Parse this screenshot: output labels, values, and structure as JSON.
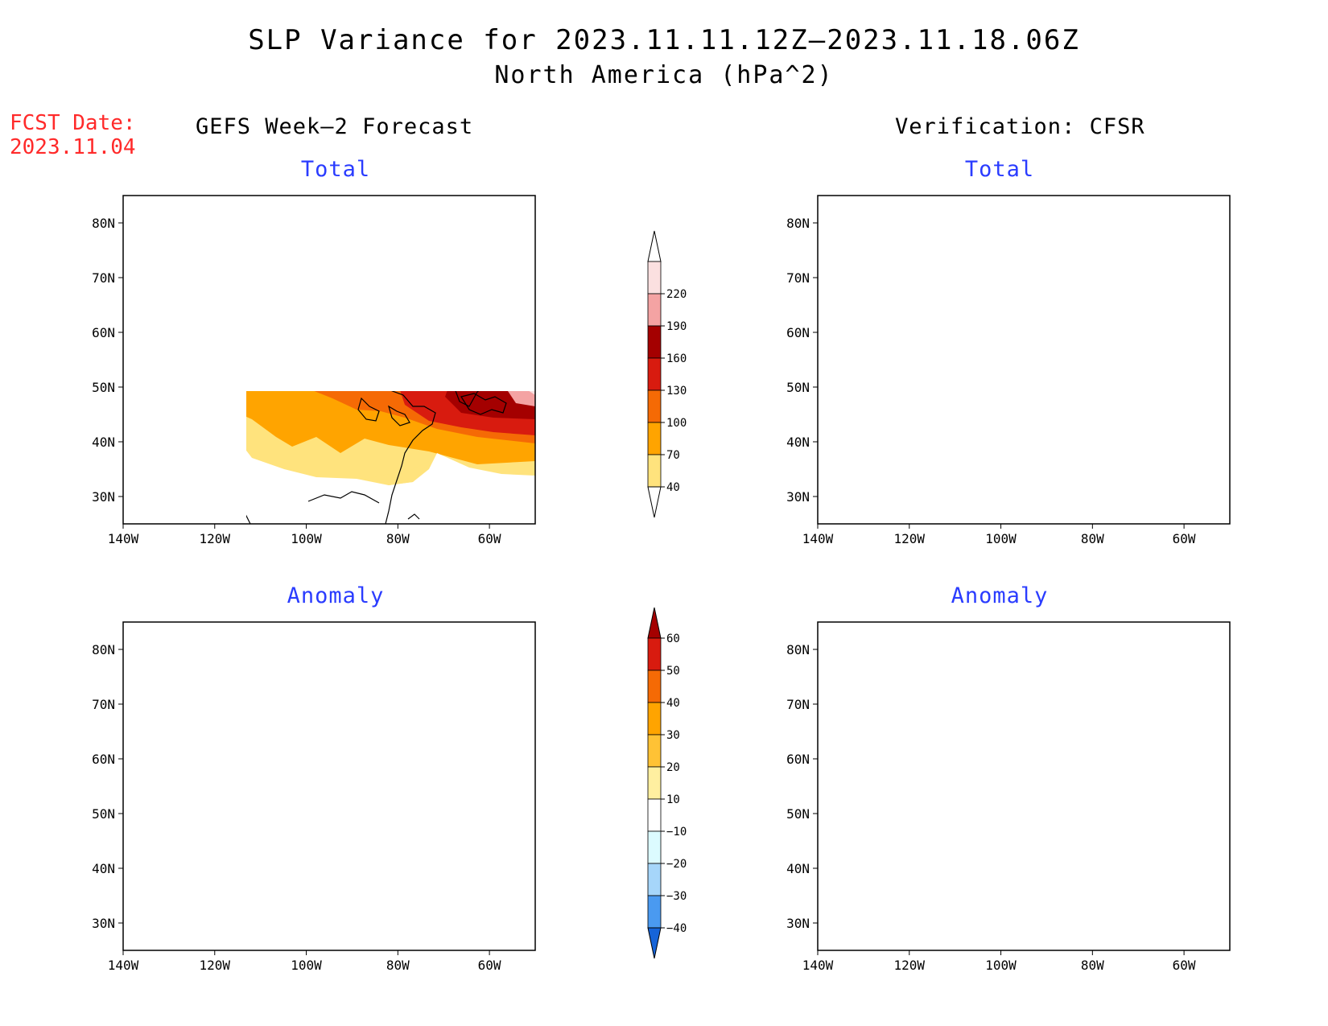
{
  "title": "SLP Variance for 2023.11.11.12Z–2023.11.18.06Z",
  "subtitle": "North America (hPa^2)",
  "forecast_date": {
    "label": "FCST Date:",
    "value": "2023.11.04"
  },
  "columns": {
    "left": "GEFS Week–2 Forecast",
    "right": "Verification: CFSR"
  },
  "panels": [
    {
      "id": "gefs-total",
      "title": "Total"
    },
    {
      "id": "cfsr-total",
      "title": "Total"
    },
    {
      "id": "gefs-anomaly",
      "title": "Anomaly"
    },
    {
      "id": "cfsr-anomaly",
      "title": "Anomaly"
    }
  ],
  "axes": {
    "lon_labels": [
      "140W",
      "120W",
      "100W",
      "80W",
      "60W"
    ],
    "lat_labels": [
      "80N",
      "70N",
      "60N",
      "50N",
      "40N",
      "30N"
    ],
    "lon_range": [
      -140,
      -50
    ],
    "lat_range": [
      25,
      85
    ]
  },
  "colorbar_total": {
    "labels": [
      "220",
      "190",
      "160",
      "130",
      "100",
      "70",
      "40"
    ],
    "colors": [
      "#fbe0e0",
      "#f4a3a3",
      "#a40000",
      "#d81b0f",
      "#f56a05",
      "#ffa400",
      "#ffe37d"
    ]
  },
  "colorbar_anomaly": {
    "labels": [
      "60",
      "50",
      "40",
      "30",
      "20",
      "10",
      "−10",
      "−20",
      "−30",
      "−40"
    ],
    "colors": [
      "#a40000",
      "#d81b0f",
      "#f56a05",
      "#ffa400",
      "#ffc235",
      "#ffefa0",
      "#ffffff",
      "#dcfbff",
      "#a6d6fa",
      "#4a9af0",
      "#1664d8"
    ]
  }
}
